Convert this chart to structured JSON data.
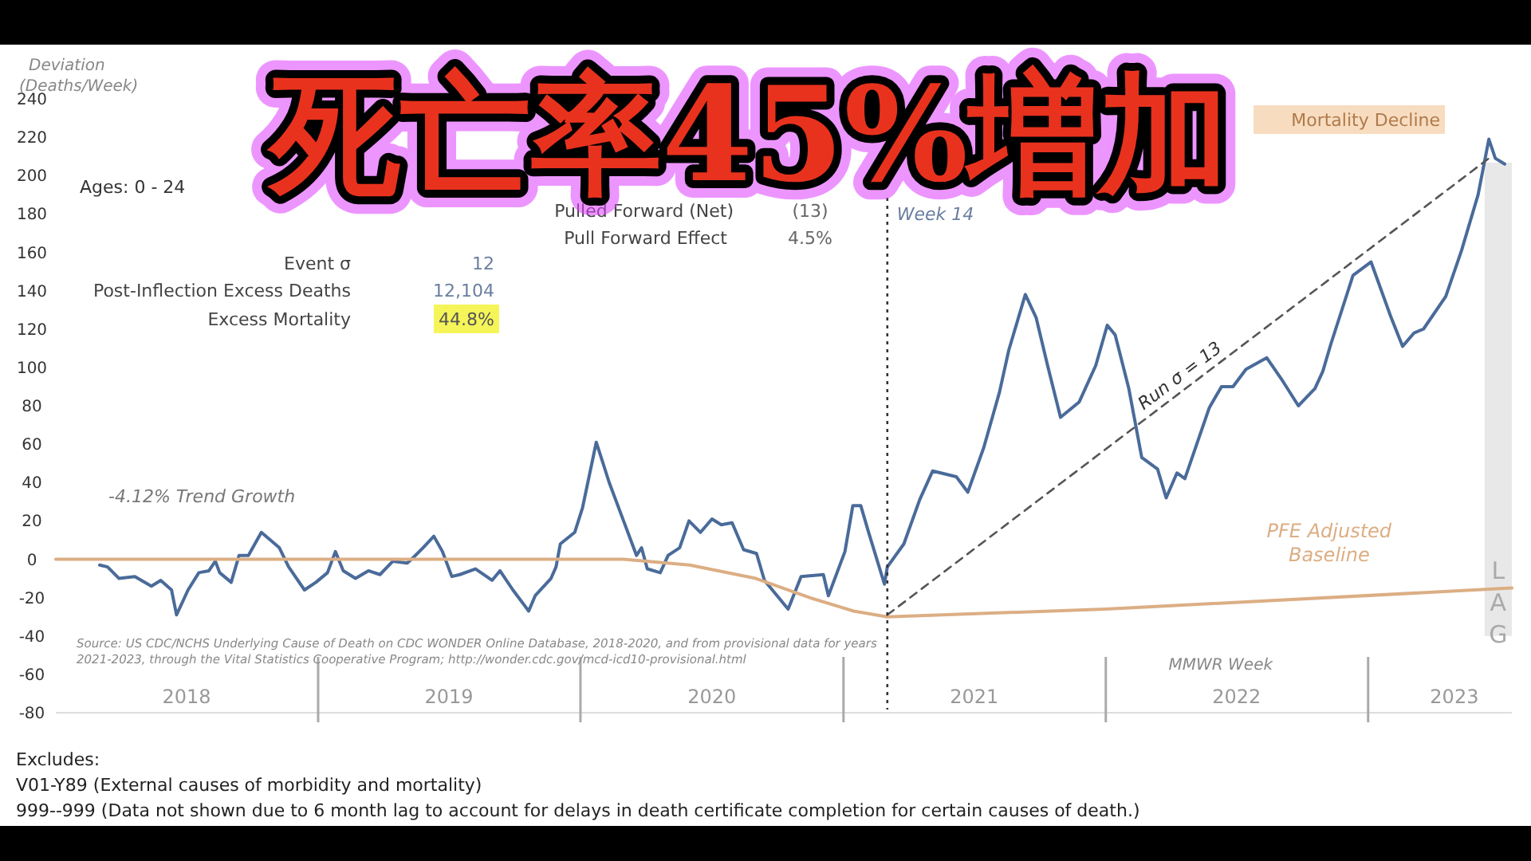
{
  "chart_data": {
    "type": "line",
    "title": "死亡率45%増加",
    "xlabel": "MMWR Week",
    "ylabel": "Deviation (Deaths/Week)",
    "xlim": [
      "2018-01-01",
      "2023-07-20"
    ],
    "xticks": [
      {
        "value": "2018-07-02",
        "label": "2018"
      },
      {
        "value": "2019-01-01",
        "label": null
      },
      {
        "value": "2019-07-02",
        "label": "2019"
      },
      {
        "value": "2020-01-01",
        "label": null
      },
      {
        "value": "2020-07-02",
        "label": "2020"
      },
      {
        "value": "2021-01-01",
        "label": null
      },
      {
        "value": "2021-07-02",
        "label": "2021"
      },
      {
        "value": "2022-01-01",
        "label": null
      },
      {
        "value": "2022-07-02",
        "label": "2022"
      },
      {
        "value": "2023-01-01",
        "label": null
      },
      {
        "value": "2023-05-01",
        "label": "2023"
      }
    ],
    "ylim": [
      -80,
      240
    ],
    "yticks": [
      -80,
      -60,
      -40,
      -20,
      0,
      20,
      40,
      60,
      80,
      100,
      120,
      140,
      160,
      180,
      200,
      220,
      240
    ],
    "series": [
      {
        "color": "#4a6b9a",
        "x": [
          "2018-03-03",
          "2018-03-14",
          "2018-03-30",
          "2018-04-21",
          "2018-05-14",
          "2018-05-27",
          "2018-06-11",
          "2018-06-18",
          "2018-07-04",
          "2018-07-19",
          "2018-08-02",
          "2018-08-11",
          "2018-08-17",
          "2018-09-02",
          "2018-09-13",
          "2018-09-26",
          "2018-10-14",
          "2018-11-08",
          "2018-11-21",
          "2018-12-13",
          "2018-12-29",
          "2019-01-14",
          "2019-01-25",
          "2019-02-05",
          "2019-02-22",
          "2019-03-12",
          "2019-03-28",
          "2019-04-15",
          "2019-05-05",
          "2019-05-11",
          "2019-05-27",
          "2019-06-11",
          "2019-06-23",
          "2019-07-06",
          "2019-07-17",
          "2019-08-08",
          "2019-08-31",
          "2019-09-11",
          "2019-09-29",
          "2019-10-21",
          "2019-10-30",
          "2019-11-21",
          "2019-11-28",
          "2019-12-04",
          "2019-12-24",
          "2020-01-04",
          "2020-01-23",
          "2020-02-10",
          "2020-03-01",
          "2020-03-19",
          "2020-03-26",
          "2020-04-03",
          "2020-04-21",
          "2020-05-02",
          "2020-05-18",
          "2020-05-31",
          "2020-06-16",
          "2020-07-02",
          "2020-07-15",
          "2020-07-30",
          "2020-08-15",
          "2020-09-02",
          "2020-09-13",
          "2020-10-16",
          "2020-11-03",
          "2020-12-04",
          "2020-12-11",
          "2021-01-03",
          "2021-01-14",
          "2021-01-25",
          "2021-02-05",
          "2021-02-27",
          "2021-03-03",
          "2021-03-26",
          "2021-04-17",
          "2021-05-05",
          "2021-06-07",
          "2021-06-23",
          "2021-07-15",
          "2021-08-06",
          "2021-08-19",
          "2021-09-11",
          "2021-09-26",
          "2021-10-12",
          "2021-10-30",
          "2021-11-25",
          "2021-12-18",
          "2022-01-03",
          "2022-01-14",
          "2022-02-02",
          "2022-02-20",
          "2022-03-14",
          "2022-03-26",
          "2022-04-10",
          "2022-04-21",
          "2022-05-02",
          "2022-05-25",
          "2022-06-11",
          "2022-06-27",
          "2022-07-15",
          "2022-08-13",
          "2022-09-04",
          "2022-09-26",
          "2022-10-19",
          "2022-10-30",
          "2022-11-10",
          "2022-12-11",
          "2023-01-05",
          "2023-02-02",
          "2023-02-18",
          "2023-03-06",
          "2023-03-19",
          "2023-04-19",
          "2023-05-11",
          "2023-06-03",
          "2023-06-18",
          "2023-06-27",
          "2023-07-10"
        ],
        "values": [
          -3,
          -4,
          -10,
          -9,
          -14,
          -11,
          -16,
          -29,
          -16,
          -7,
          -6,
          -1,
          -7,
          -12,
          2,
          2,
          14,
          6,
          -4,
          -16,
          -12,
          -7,
          4,
          -6,
          -10,
          -6,
          -8,
          -1,
          -2,
          0,
          6,
          12,
          4,
          -9,
          -8,
          -5,
          -11,
          -6,
          -16,
          -27,
          -19,
          -10,
          -4,
          8,
          14,
          27,
          61,
          40,
          20,
          2,
          6,
          -5,
          -7,
          2,
          6,
          20,
          14,
          21,
          18,
          19,
          5,
          3,
          -11,
          -26,
          -9,
          -8,
          -19,
          4,
          28,
          28,
          14,
          -13,
          -4,
          8,
          31,
          46,
          43,
          35,
          58,
          87,
          109,
          138,
          126,
          101,
          74,
          82,
          101,
          122,
          117,
          89,
          53,
          47,
          32,
          45,
          42,
          54,
          79,
          90,
          90,
          99,
          105,
          93,
          80,
          89,
          98,
          112,
          148,
          155,
          126,
          111,
          118,
          120,
          137,
          161,
          190,
          219,
          209,
          206
        ]
      },
      {
        "name": "PFE Adjusted Baseline",
        "color": "#dcae84",
        "x": [
          "2018-01-01",
          "2020-03-01",
          "2020-06-01",
          "2020-09-01",
          "2020-11-15",
          "2021-01-15",
          "2021-03-03",
          "2022-01-01",
          "2023-07-20"
        ],
        "values": [
          0,
          0,
          -3,
          -10,
          -20,
          -27,
          -30,
          -26,
          -15
        ]
      },
      {
        "name": "Run σ = 13",
        "color": "#555555",
        "line_style": "dashed",
        "x": [
          "2021-03-03",
          "2023-06-18"
        ],
        "values": [
          -29,
          209
        ]
      }
    ],
    "ref_lines": [
      {
        "axis": "x",
        "value": "2021-03-03",
        "label": "Week 14",
        "line_style": "dotted",
        "color": "#333333"
      }
    ],
    "bands": [
      {
        "axis": "x",
        "from": "2023-06-12",
        "to": "2023-07-20",
        "label": "LAG",
        "color": "#d9d9d9"
      }
    ],
    "annotations": [
      "Ages: 0 - 24",
      "Pulled Forward (Net)",
      "(13)",
      "Pull Forward Effect",
      "4.5%",
      "Event σ",
      "12",
      "Post-Inflection Excess Deaths",
      "12,104",
      "Excess Mortality",
      "44.8%",
      "-4.12% Trend Growth",
      "Source: US CDC/NCHS Underlying Cause of Death on CDC WONDER Online Database, 2018-2020, and from provisional data for years",
      "2021-2023, through the Vital Statistics Cooperative Program; http://wonder.cdc.gov/mcd-icd10-provisional.html",
      "Mortality Decline",
      "Excludes:",
      "V01-Y89 (External causes of morbidity and mortality)",
      "999--999 (Data not shown due to 6 month lag to account for delays in death certificate completion for certain causes of death.)"
    ]
  }
}
